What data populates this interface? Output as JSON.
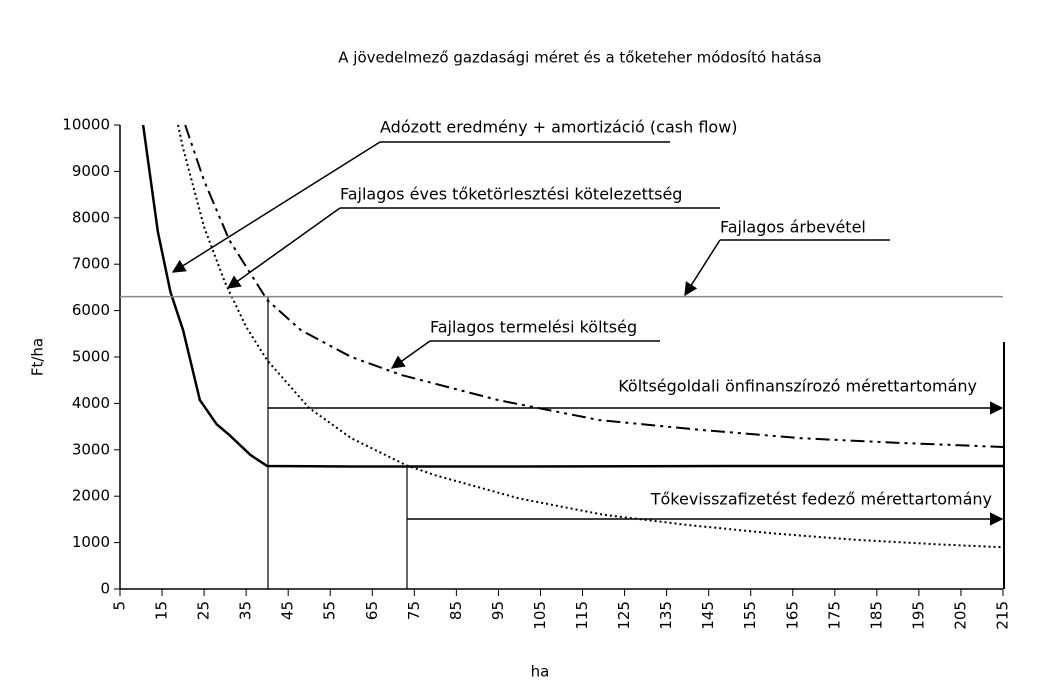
{
  "chart_data": {
    "type": "line",
    "title": "A jövedelmező gazdasági méret és a tőketeher módosító hatása",
    "x_label": "ha",
    "y_label": "Ft/ha",
    "xlim": [
      5,
      215
    ],
    "xticks": [
      5,
      15,
      25,
      35,
      45,
      55,
      65,
      75,
      85,
      95,
      105,
      115,
      125,
      135,
      145,
      155,
      165,
      175,
      185,
      195,
      205,
      215
    ],
    "ylim": [
      0,
      10000
    ],
    "yticks": [
      0,
      1000,
      2000,
      3000,
      4000,
      5000,
      6000,
      7000,
      8000,
      9000,
      10000
    ],
    "annotations": [
      "Adózott eredmény + amortizáció (cash flow)",
      "Fajlagos éves tőketörlesztési kötelezettség",
      "Fajlagos árbevétel",
      "Fajlagos termelési költség",
      "Költségoldali önfinanszírozó mérettartomány",
      "Tőkevisszafizetést fedező mérettartomány"
    ],
    "series": [
      {
        "color": "#000000",
        "style": "solid",
        "width": 2.5,
        "x": [
          10.5,
          14,
          17,
          20,
          24,
          28,
          31,
          36,
          40,
          60,
          100,
          150,
          215
        ],
        "values": [
          10000,
          7700,
          6400,
          5580,
          4070,
          3550,
          3320,
          2890,
          2650,
          2640,
          2640,
          2650,
          2650
        ]
      },
      {
        "color": "#000000",
        "style": "dotted",
        "width": 2,
        "x": [
          18.8,
          20,
          25,
          30,
          35,
          40,
          50,
          60,
          73,
          80,
          100,
          120,
          140,
          160,
          180,
          200,
          215
        ],
        "values": [
          10000,
          9500,
          7800,
          6600,
          5650,
          4930,
          3900,
          3250,
          2670,
          2450,
          1950,
          1600,
          1380,
          1200,
          1060,
          960,
          900
        ]
      },
      {
        "color": "#000000",
        "style": "dashdotdot",
        "width": 2,
        "x": [
          20.5,
          25,
          31,
          40,
          48,
          60,
          72,
          95,
          119,
          143,
          167,
          190,
          215
        ],
        "values": [
          10000,
          8800,
          7520,
          6230,
          5580,
          5000,
          4610,
          4070,
          3640,
          3430,
          3250,
          3150,
          3060
        ]
      },
      {
        "color": "#888888",
        "style": "solid",
        "width": 1.5,
        "x": [
          5,
          215
        ],
        "values": [
          6300,
          6300
        ]
      }
    ]
  }
}
